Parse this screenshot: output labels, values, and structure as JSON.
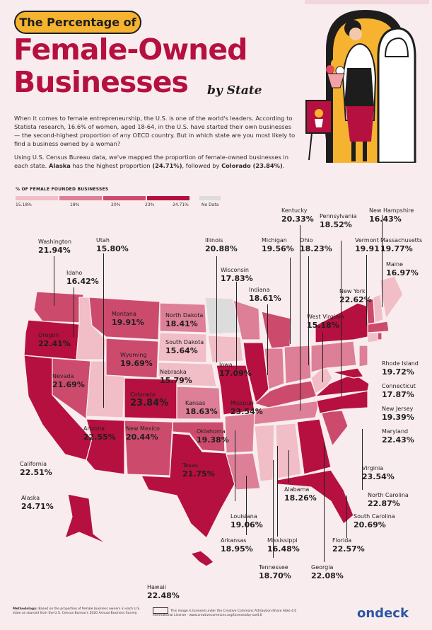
{
  "header": {
    "badge": "The Percentage of",
    "title_line1": "Female-Owned",
    "title_line2": "Businesses",
    "by_state": "by State"
  },
  "intro": {
    "paragraph1": "When it comes to female entrepreneurship, the U.S. is one of the world's leaders. According to Statista research, 16.6% of women, aged 18-64, in the U.S. have started their own businesses — the second-highest proportion of any OECD country. But in which state are you most likely to find a business owned by a woman?",
    "paragraph2_a": "Using U.S. Census Bureau data, we've mapped the proportion of female-owned businesses in each state. ",
    "paragraph2_b": "Alaska",
    "paragraph2_c": " has the highest proportion ",
    "paragraph2_d": "(24.71%)",
    "paragraph2_e": ", followed by ",
    "paragraph2_f": "Colorado (23.84%)",
    "paragraph2_g": "."
  },
  "legend": {
    "title": "% OF FEMALE FOUNDED BUSINESSES",
    "stops": [
      "15.18%",
      "18%",
      "20%",
      "23%",
      "24.71%"
    ],
    "no_data": "No Data",
    "colors": [
      "#f1bdc6",
      "#dd7f96",
      "#cc4b6d",
      "#b5103f",
      "#dcdcdc"
    ]
  },
  "colors": {
    "title": "#b5103f",
    "badge": "#f6b330",
    "background": "#f9ecee",
    "logo": "#2b56a6"
  },
  "states": [
    {
      "name": "Washington",
      "value": "21.94%"
    },
    {
      "name": "Utah",
      "value": "15.80%"
    },
    {
      "name": "Idaho",
      "value": "16.42%"
    },
    {
      "name": "Montana",
      "value": "19.91%"
    },
    {
      "name": "North Dakota",
      "value": "18.41%"
    },
    {
      "name": "Oregon",
      "value": "22.41%"
    },
    {
      "name": "South Dakota",
      "value": "15.64%"
    },
    {
      "name": "Wyoming",
      "value": "19.69%"
    },
    {
      "name": "Nevada",
      "value": "21.69%"
    },
    {
      "name": "Nebraska",
      "value": "15.79%"
    },
    {
      "name": "Iowa",
      "value": "17.09%"
    },
    {
      "name": "Colorado",
      "value": "23.84%"
    },
    {
      "name": "Kansas",
      "value": "18.63%"
    },
    {
      "name": "Missouri",
      "value": "23.54%"
    },
    {
      "name": "Arizona",
      "value": "22.55%"
    },
    {
      "name": "New Mexico",
      "value": "20.44%"
    },
    {
      "name": "Oklahoma",
      "value": "19.38%"
    },
    {
      "name": "California",
      "value": "22.51%"
    },
    {
      "name": "Texas",
      "value": "21.75%"
    },
    {
      "name": "Alaska",
      "value": "24.71%"
    },
    {
      "name": "Hawaii",
      "value": "22.48%"
    },
    {
      "name": "Illinois",
      "value": "20.88%"
    },
    {
      "name": "Wisconsin",
      "value": "17.83%"
    },
    {
      "name": "Michigan",
      "value": "19.56%"
    },
    {
      "name": "Indiana",
      "value": "18.61%"
    },
    {
      "name": "Kentucky",
      "value": "20.33%"
    },
    {
      "name": "Ohio",
      "value": "18.23%"
    },
    {
      "name": "Pennsylvania",
      "value": "18.52%"
    },
    {
      "name": "West Virginia",
      "value": "15.18%"
    },
    {
      "name": "New York",
      "value": "22.62%"
    },
    {
      "name": "Vermont",
      "value": "19.91"
    },
    {
      "name": "New Hampshire",
      "value": "16.43%"
    },
    {
      "name": "Massachusetts",
      "value": "19.77%"
    },
    {
      "name": "Maine",
      "value": "16.97%"
    },
    {
      "name": "Rhode Island",
      "value": "19.72%"
    },
    {
      "name": "Connecticut",
      "value": "17.87%"
    },
    {
      "name": "New Jersey",
      "value": "19.39%"
    },
    {
      "name": "Maryland",
      "value": "22.43%"
    },
    {
      "name": "Virginia",
      "value": "23.54%"
    },
    {
      "name": "North Carolina",
      "value": "22.87%"
    },
    {
      "name": "South Carolina",
      "value": "20.69%"
    },
    {
      "name": "Louisiana",
      "value": "19.06%"
    },
    {
      "name": "Arkansas",
      "value": "18.95%"
    },
    {
      "name": "Mississippi",
      "value": "16.48%"
    },
    {
      "name": "Alabama",
      "value": "18.26%"
    },
    {
      "name": "Tennessee",
      "value": "18.70%"
    },
    {
      "name": "Georgia",
      "value": "22.08%"
    },
    {
      "name": "Florida",
      "value": "22.57%"
    }
  ],
  "footer": {
    "methodology_label": "Methodology:",
    "methodology": " Based on the proportion of female business owners in each U.S. state as sourced from the U.S. Census Bureau's 2020 Annual Business Survey.",
    "license": "This image is licensed under the Creative Commons Attribution-Share Alike 4.0 International License - www.creativecommons.org/licenses/by-sa/4.0",
    "logo": "ondeck"
  }
}
